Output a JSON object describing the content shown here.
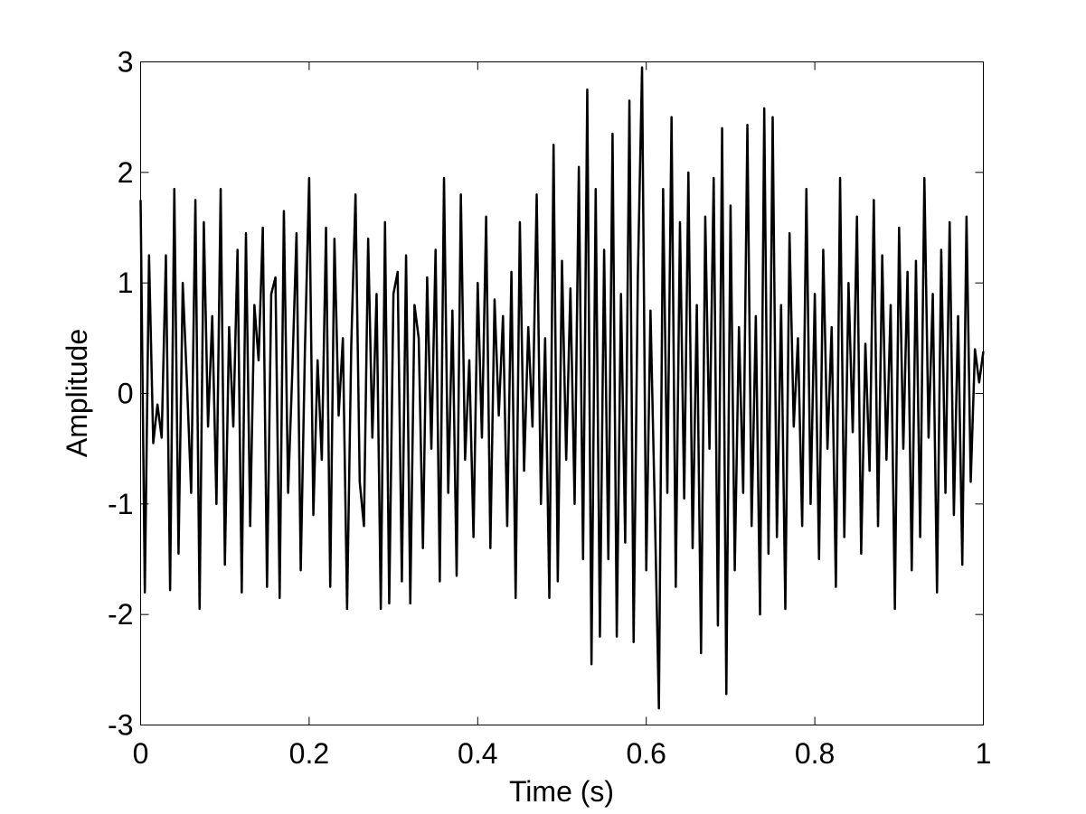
{
  "chart_data": {
    "type": "line",
    "xlabel": "Time (s)",
    "ylabel": "Amplitude",
    "xlim": [
      0,
      1
    ],
    "ylim": [
      -3,
      3
    ],
    "xticks": [
      0,
      0.2,
      0.4,
      0.6,
      0.8,
      1
    ],
    "yticks": [
      -3,
      -2,
      -1,
      0,
      1,
      2,
      3
    ],
    "color": "#000000",
    "x": [
      0,
      0.005,
      0.01,
      0.015,
      0.02,
      0.025,
      0.03,
      0.035,
      0.04,
      0.045,
      0.05,
      0.055,
      0.06,
      0.065,
      0.07,
      0.075,
      0.08,
      0.085,
      0.09,
      0.095,
      0.1,
      0.105,
      0.11,
      0.115,
      0.12,
      0.125,
      0.13,
      0.135,
      0.14,
      0.145,
      0.15,
      0.155,
      0.16,
      0.165,
      0.17,
      0.175,
      0.18,
      0.185,
      0.19,
      0.195,
      0.2,
      0.205,
      0.21,
      0.215,
      0.22,
      0.225,
      0.23,
      0.235,
      0.24,
      0.245,
      0.25,
      0.255,
      0.26,
      0.265,
      0.27,
      0.275,
      0.28,
      0.285,
      0.29,
      0.295,
      0.3,
      0.305,
      0.31,
      0.315,
      0.32,
      0.325,
      0.33,
      0.335,
      0.34,
      0.345,
      0.35,
      0.355,
      0.36,
      0.365,
      0.37,
      0.375,
      0.38,
      0.385,
      0.39,
      0.395,
      0.4,
      0.405,
      0.41,
      0.415,
      0.42,
      0.425,
      0.43,
      0.435,
      0.44,
      0.445,
      0.45,
      0.455,
      0.46,
      0.465,
      0.47,
      0.475,
      0.48,
      0.485,
      0.49,
      0.495,
      0.5,
      0.505,
      0.51,
      0.515,
      0.52,
      0.525,
      0.53,
      0.535,
      0.54,
      0.545,
      0.55,
      0.555,
      0.56,
      0.565,
      0.57,
      0.575,
      0.58,
      0.585,
      0.59,
      0.595,
      0.6,
      0.605,
      0.61,
      0.615,
      0.62,
      0.625,
      0.63,
      0.635,
      0.64,
      0.645,
      0.65,
      0.655,
      0.66,
      0.665,
      0.67,
      0.675,
      0.68,
      0.685,
      0.69,
      0.695,
      0.7,
      0.705,
      0.71,
      0.715,
      0.72,
      0.725,
      0.73,
      0.735,
      0.74,
      0.745,
      0.75,
      0.755,
      0.76,
      0.765,
      0.77,
      0.775,
      0.78,
      0.785,
      0.79,
      0.795,
      0.8,
      0.805,
      0.81,
      0.815,
      0.82,
      0.825,
      0.83,
      0.835,
      0.84,
      0.845,
      0.85,
      0.855,
      0.86,
      0.865,
      0.87,
      0.875,
      0.88,
      0.885,
      0.89,
      0.895,
      0.9,
      0.905,
      0.91,
      0.915,
      0.92,
      0.925,
      0.93,
      0.935,
      0.94,
      0.945,
      0.95,
      0.955,
      0.96,
      0.965,
      0.97,
      0.975,
      0.98,
      0.985,
      0.99,
      0.995,
      1
    ],
    "values": [
      1.75,
      -1.8,
      1.25,
      -0.45,
      -0.1,
      -0.4,
      1.25,
      -1.78,
      1.85,
      -1.45,
      1.0,
      0.1,
      -0.9,
      1.75,
      -1.95,
      1.55,
      -0.3,
      0.7,
      -1.0,
      1.85,
      -1.55,
      0.6,
      -0.3,
      1.3,
      -1.8,
      1.45,
      -1.2,
      0.8,
      0.3,
      1.5,
      -1.75,
      0.9,
      1.05,
      -1.85,
      1.65,
      -0.9,
      0.2,
      1.45,
      -1.6,
      0.4,
      1.95,
      -1.1,
      0.3,
      -0.6,
      1.5,
      -1.75,
      1.4,
      -0.2,
      0.5,
      -1.95,
      0.45,
      1.8,
      -0.8,
      -1.2,
      1.4,
      -0.4,
      0.9,
      -1.95,
      1.55,
      -1.9,
      0.9,
      1.1,
      -1.7,
      1.25,
      -1.9,
      0.8,
      0.5,
      -1.4,
      1.05,
      -0.5,
      1.3,
      -1.7,
      1.95,
      -0.9,
      0.75,
      -1.65,
      1.8,
      -0.6,
      0.3,
      -1.3,
      1.0,
      -0.4,
      1.6,
      -1.4,
      0.85,
      -0.2,
      0.7,
      -1.2,
      1.1,
      -1.85,
      1.55,
      -0.7,
      0.6,
      -0.3,
      1.8,
      -1.0,
      0.5,
      -1.85,
      2.25,
      -1.7,
      1.2,
      -0.6,
      0.95,
      -1.0,
      2.05,
      -1.5,
      2.75,
      -2.45,
      1.85,
      -2.2,
      1.3,
      -1.5,
      2.35,
      -2.2,
      0.9,
      -1.35,
      2.65,
      -2.25,
      1.05,
      2.95,
      -1.6,
      0.75,
      -1.0,
      -2.85,
      1.85,
      -0.9,
      2.5,
      -1.75,
      1.55,
      -0.95,
      2.0,
      -1.4,
      0.8,
      -2.35,
      1.6,
      -0.5,
      1.95,
      -2.1,
      2.4,
      -2.72,
      1.7,
      -1.6,
      0.6,
      -0.9,
      2.43,
      -1.2,
      0.7,
      -2.0,
      2.58,
      -1.45,
      2.5,
      -1.3,
      0.8,
      -1.95,
      1.45,
      -0.3,
      0.5,
      -1.2,
      1.85,
      -1.0,
      0.9,
      -1.5,
      1.3,
      -0.5,
      0.6,
      -1.75,
      1.95,
      -1.3,
      1.0,
      -0.35,
      1.6,
      -1.45,
      0.45,
      -0.7,
      1.75,
      -1.2,
      1.25,
      -0.6,
      0.8,
      -1.95,
      1.5,
      -0.5,
      1.1,
      -1.6,
      1.2,
      -1.3,
      1.95,
      -0.4,
      0.9,
      -1.8,
      1.3,
      -0.9,
      1.55,
      -1.1,
      0.7,
      -1.55,
      1.6,
      -0.8,
      0.4,
      0.1,
      0.38
    ]
  }
}
